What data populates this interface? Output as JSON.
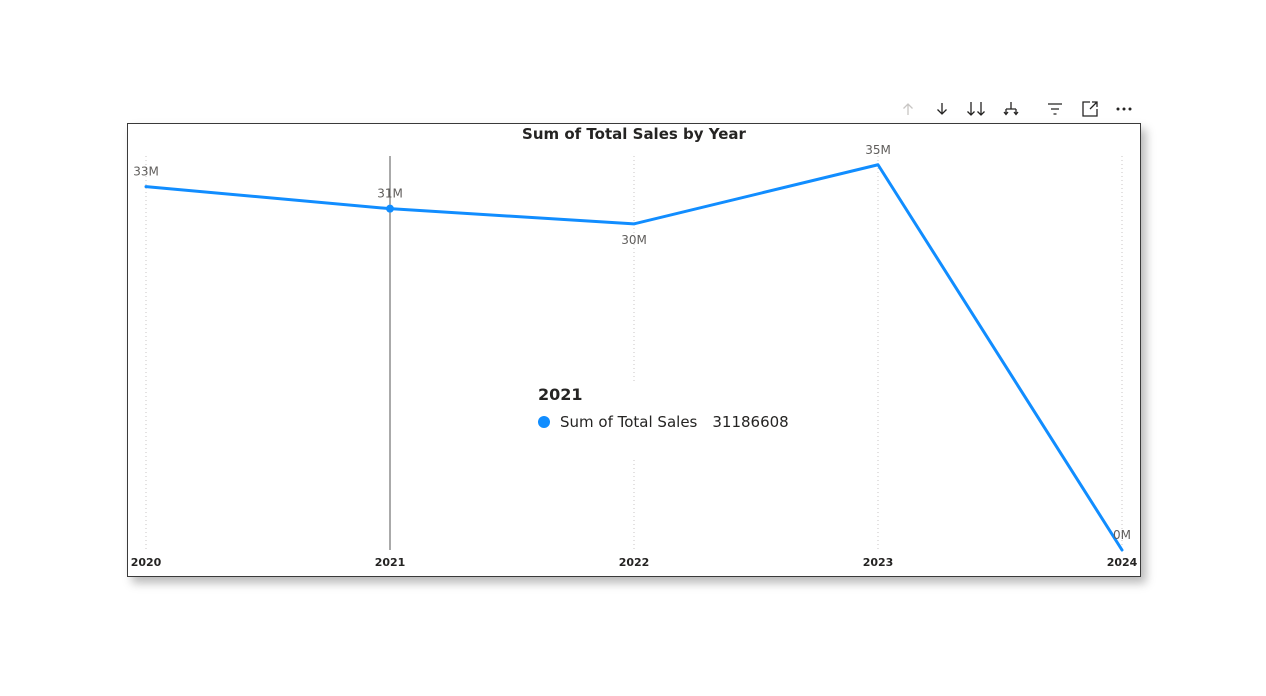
{
  "toolbar": {
    "icons": [
      "arrow-up-icon",
      "arrow-down-icon",
      "double-arrow-down-icon",
      "expand-hierarchy-icon",
      "filter-icon",
      "focus-mode-icon",
      "more-options-icon"
    ]
  },
  "colors": {
    "series": "#118DFF",
    "axis_text": "#252423",
    "label_text": "#605E5C",
    "gridline": "#C8C6C4",
    "hover_line": "#555555"
  },
  "chart_data": {
    "type": "line",
    "title": "Sum of Total Sales by Year",
    "xlabel": "",
    "ylabel": "",
    "categories": [
      "2020",
      "2021",
      "2022",
      "2023",
      "2024"
    ],
    "series": [
      {
        "name": "Sum of Total Sales",
        "values": [
          33200000,
          31186608,
          29800000,
          35200000,
          0
        ],
        "data_labels": [
          "33M",
          "31M",
          "30M",
          "35M",
          "0M"
        ]
      }
    ],
    "ylim": [
      0,
      36000000
    ],
    "grid": "vertical dotted",
    "highlighted_category": "2021"
  },
  "tooltip": {
    "title": "2021",
    "series_label": "Sum of Total Sales",
    "value": "31186608"
  }
}
